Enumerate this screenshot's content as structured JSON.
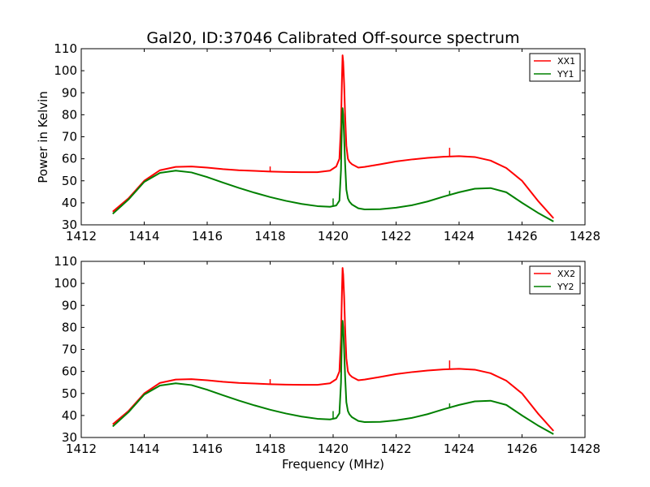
{
  "chart_data": [
    {
      "type": "line",
      "title": "Gal20, ID:37046 Calibrated Off-source spectrum",
      "xlabel": "",
      "ylabel": "Power in Kelvin",
      "xlim": [
        1412,
        1428
      ],
      "ylim": [
        30,
        110
      ],
      "xticks": [
        "1412",
        "1414",
        "1416",
        "1418",
        "1420",
        "1422",
        "1424",
        "1426",
        "1428"
      ],
      "yticks": [
        "30",
        "40",
        "50",
        "60",
        "70",
        "80",
        "90",
        "100",
        "110"
      ],
      "grid": false,
      "legend_position": "top-right",
      "series": [
        {
          "name": "XX1",
          "color": "#ff0000",
          "x": [
            1413.0,
            1413.5,
            1414.0,
            1414.5,
            1415.0,
            1415.5,
            1416.0,
            1416.5,
            1417.0,
            1417.5,
            1418.0,
            1418.5,
            1419.0,
            1419.5,
            1419.9,
            1420.1,
            1420.2,
            1420.25,
            1420.28,
            1420.3,
            1420.32,
            1420.35,
            1420.38,
            1420.42,
            1420.47,
            1420.52,
            1420.6,
            1420.8,
            1421.0,
            1421.5,
            1422.0,
            1422.5,
            1423.0,
            1423.5,
            1424.0,
            1424.5,
            1425.0,
            1425.5,
            1426.0,
            1426.5,
            1427.0
          ],
          "y": [
            36,
            42,
            50,
            54.8,
            56.3,
            56.5,
            56,
            55.3,
            54.8,
            54.5,
            54.2,
            54,
            53.9,
            53.9,
            54.6,
            56.5,
            60,
            75,
            96,
            107,
            104,
            94,
            80,
            66,
            60,
            58.6,
            57.5,
            56,
            56.3,
            57.5,
            58.8,
            59.7,
            60.4,
            60.9,
            61.2,
            60.8,
            59.2,
            55.8,
            50,
            41,
            33
          ],
          "spikes": [
            {
              "x": 1418.0,
              "y": 56.5
            },
            {
              "x": 1423.7,
              "y": 65
            }
          ]
        },
        {
          "name": "YY1",
          "color": "#008000",
          "x": [
            1413.0,
            1413.5,
            1414.0,
            1414.5,
            1415.0,
            1415.5,
            1416.0,
            1416.5,
            1417.0,
            1417.5,
            1418.0,
            1418.5,
            1419.0,
            1419.5,
            1419.9,
            1420.1,
            1420.2,
            1420.25,
            1420.28,
            1420.3,
            1420.32,
            1420.35,
            1420.38,
            1420.42,
            1420.47,
            1420.52,
            1420.6,
            1420.8,
            1421.0,
            1421.5,
            1422.0,
            1422.5,
            1423.0,
            1423.5,
            1424.0,
            1424.5,
            1425.0,
            1425.5,
            1426.0,
            1426.5,
            1427.0
          ],
          "y": [
            35,
            41.5,
            49.5,
            53.6,
            54.6,
            53.8,
            51.7,
            49.2,
            46.8,
            44.6,
            42.6,
            40.9,
            39.5,
            38.5,
            38.2,
            38.8,
            41,
            55,
            78,
            83,
            80,
            70,
            58,
            46,
            42,
            40.5,
            39.2,
            37.5,
            37,
            37.1,
            37.8,
            38.9,
            40.6,
            42.8,
            44.8,
            46.4,
            46.7,
            44.8,
            40,
            35.5,
            31.5
          ],
          "spikes": [
            {
              "x": 1420.0,
              "y": 42
            },
            {
              "x": 1423.7,
              "y": 45.5
            }
          ]
        }
      ]
    },
    {
      "type": "line",
      "title": "",
      "xlabel": "Frequency (MHz)",
      "ylabel": "",
      "xlim": [
        1412,
        1428
      ],
      "ylim": [
        30,
        110
      ],
      "xticks": [
        "1412",
        "1414",
        "1416",
        "1418",
        "1420",
        "1422",
        "1424",
        "1426",
        "1428"
      ],
      "yticks": [
        "30",
        "40",
        "50",
        "60",
        "70",
        "80",
        "90",
        "100",
        "110"
      ],
      "grid": false,
      "legend_position": "top-right",
      "series": [
        {
          "name": "XX2",
          "color": "#ff0000",
          "x": [
            1413.0,
            1413.5,
            1414.0,
            1414.5,
            1415.0,
            1415.5,
            1416.0,
            1416.5,
            1417.0,
            1417.5,
            1418.0,
            1418.5,
            1419.0,
            1419.5,
            1419.9,
            1420.1,
            1420.2,
            1420.25,
            1420.28,
            1420.3,
            1420.32,
            1420.35,
            1420.38,
            1420.42,
            1420.47,
            1420.52,
            1420.6,
            1420.8,
            1421.0,
            1421.5,
            1422.0,
            1422.5,
            1423.0,
            1423.5,
            1424.0,
            1424.5,
            1425.0,
            1425.5,
            1426.0,
            1426.5,
            1427.0
          ],
          "y": [
            36,
            42,
            50,
            54.8,
            56.3,
            56.5,
            56,
            55.3,
            54.8,
            54.5,
            54.2,
            54,
            53.9,
            53.9,
            54.6,
            56.5,
            60,
            75,
            96,
            107,
            104,
            94,
            80,
            66,
            60,
            58.6,
            57.5,
            56,
            56.3,
            57.5,
            58.8,
            59.7,
            60.4,
            60.9,
            61.2,
            60.8,
            59.2,
            55.8,
            50,
            41,
            33
          ],
          "spikes": [
            {
              "x": 1418.0,
              "y": 56.5
            },
            {
              "x": 1423.7,
              "y": 65
            }
          ]
        },
        {
          "name": "YY2",
          "color": "#008000",
          "x": [
            1413.0,
            1413.5,
            1414.0,
            1414.5,
            1415.0,
            1415.5,
            1416.0,
            1416.5,
            1417.0,
            1417.5,
            1418.0,
            1418.5,
            1419.0,
            1419.5,
            1419.9,
            1420.1,
            1420.2,
            1420.25,
            1420.28,
            1420.3,
            1420.32,
            1420.35,
            1420.38,
            1420.42,
            1420.47,
            1420.52,
            1420.6,
            1420.8,
            1421.0,
            1421.5,
            1422.0,
            1422.5,
            1423.0,
            1423.5,
            1424.0,
            1424.5,
            1425.0,
            1425.5,
            1426.0,
            1426.5,
            1427.0
          ],
          "y": [
            35,
            41.5,
            49.5,
            53.6,
            54.6,
            53.8,
            51.7,
            49.2,
            46.8,
            44.6,
            42.6,
            40.9,
            39.5,
            38.5,
            38.2,
            38.8,
            41,
            55,
            78,
            83,
            80,
            70,
            58,
            46,
            42,
            40.5,
            39.2,
            37.5,
            37,
            37.1,
            37.8,
            38.9,
            40.6,
            42.8,
            44.8,
            46.4,
            46.7,
            44.8,
            40,
            35.5,
            31.5
          ],
          "spikes": [
            {
              "x": 1420.0,
              "y": 42
            },
            {
              "x": 1423.7,
              "y": 45.5
            }
          ]
        }
      ]
    }
  ]
}
